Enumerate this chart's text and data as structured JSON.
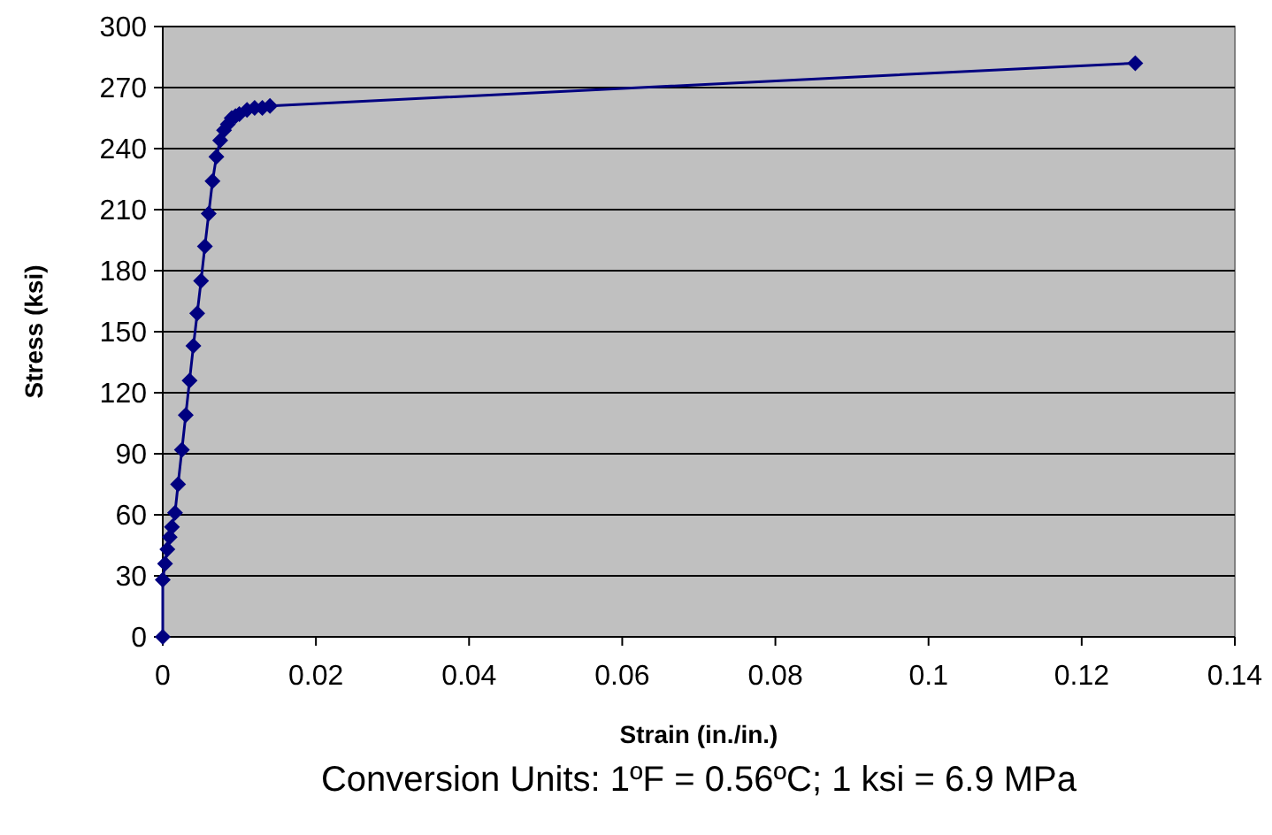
{
  "chart_data": {
    "type": "line",
    "xlabel": "Strain (in./in.)",
    "ylabel": "Stress (ksi)",
    "annotations": [
      "Conversion Units: 1ºF = 0.56ºC; 1 ksi = 6.9 MPa"
    ],
    "x": [
      0,
      0,
      0.0003,
      0.0006,
      0.0009,
      0.0012,
      0.0016,
      0.002,
      0.0025,
      0.003,
      0.0035,
      0.004,
      0.0045,
      0.005,
      0.0055,
      0.006,
      0.0065,
      0.007,
      0.0075,
      0.008,
      0.0085,
      0.009,
      0.0095,
      0.01,
      0.011,
      0.012,
      0.013,
      0.014,
      0.127
    ],
    "series": [
      {
        "color": "#000080",
        "values": [
          0,
          28,
          36,
          43,
          49,
          54,
          61,
          75,
          92,
          109,
          126,
          143,
          159,
          175,
          192,
          208,
          224,
          236,
          244,
          249,
          252,
          255,
          256,
          257,
          259,
          260,
          260,
          261,
          282
        ]
      }
    ],
    "xlim": [
      0,
      0.14
    ],
    "xticks": [
      0,
      0.02,
      0.04,
      0.06,
      0.08,
      0.1,
      0.12,
      0.14
    ],
    "ylim": [
      0,
      300
    ],
    "yticks": [
      0,
      30,
      60,
      90,
      120,
      150,
      180,
      210,
      240,
      270,
      300
    ],
    "grid": "y",
    "marker": "diamond",
    "line_style": "solid"
  }
}
